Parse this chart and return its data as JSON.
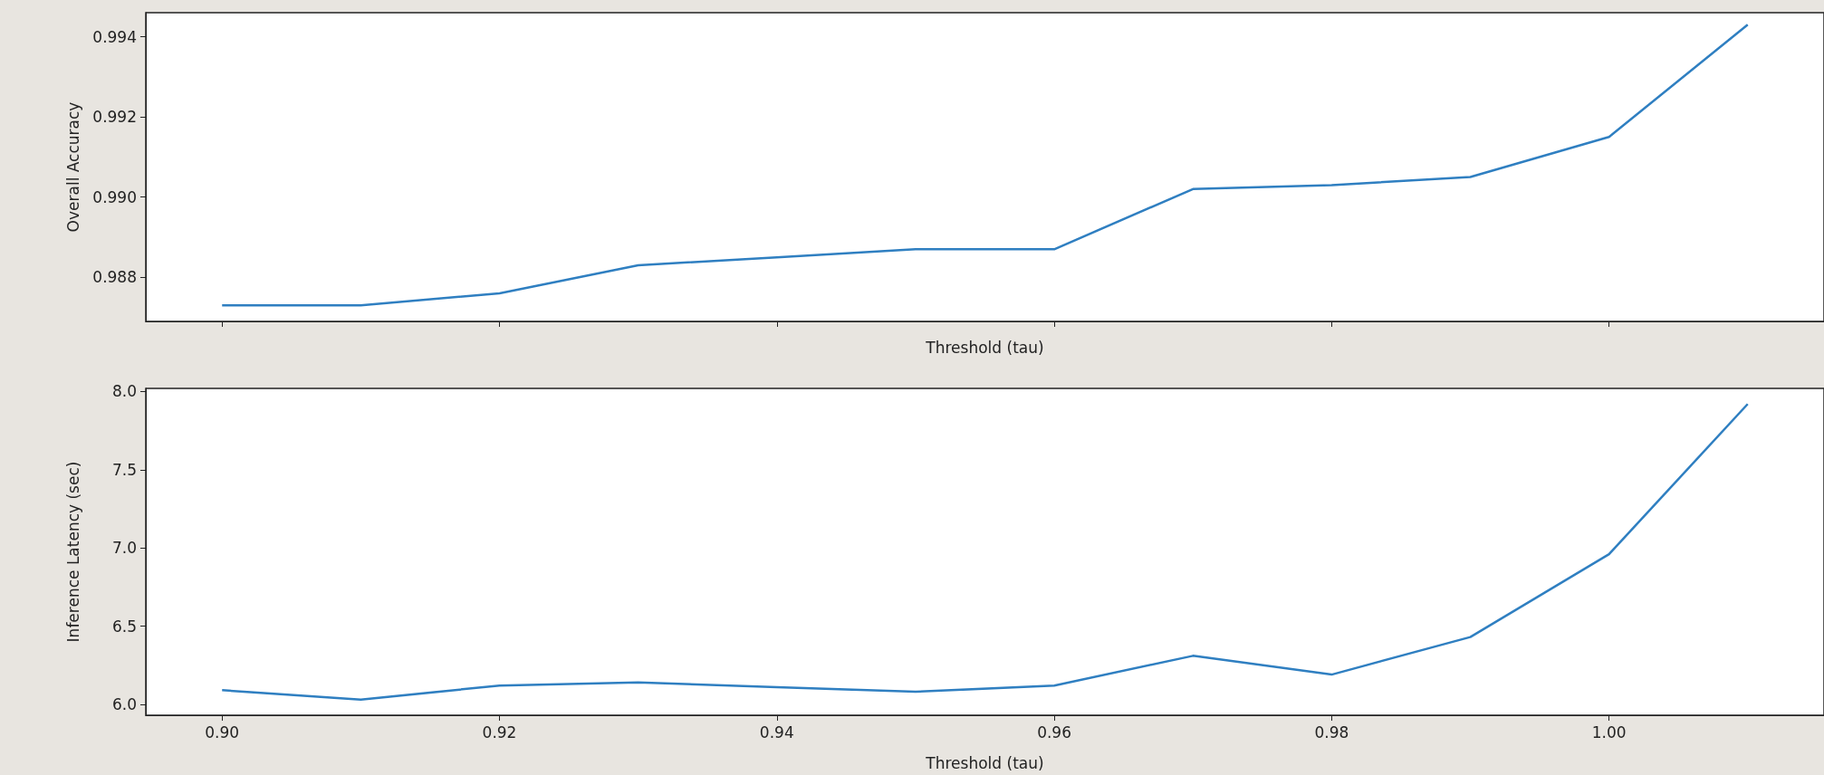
{
  "chart_data": [
    {
      "type": "line",
      "xlabel": "Threshold (tau)",
      "ylabel": "Overall Accuracy",
      "x": [
        0.9,
        0.91,
        0.92,
        0.93,
        0.94,
        0.95,
        0.96,
        0.97,
        0.98,
        0.99,
        1.0,
        1.01
      ],
      "series": [
        {
          "color": "#2f7fc1",
          "values": [
            0.9873,
            0.9873,
            0.9876,
            0.9883,
            0.9885,
            0.9887,
            0.9887,
            0.9902,
            0.9903,
            0.9905,
            0.9915,
            0.9943
          ]
        }
      ],
      "xlim": [
        0.8945,
        1.0155
      ],
      "xticks": [
        {
          "value": 0.9,
          "label": null
        },
        {
          "value": 0.92,
          "label": null
        },
        {
          "value": 0.94,
          "label": null
        },
        {
          "value": 0.96,
          "label": null
        },
        {
          "value": 0.98,
          "label": null
        },
        {
          "value": 1.0,
          "label": null
        }
      ],
      "ylim": [
        0.9869,
        0.9946
      ],
      "yticks": [
        0.988,
        {
          "value": 0.99,
          "label": "0.990"
        },
        0.992,
        0.994
      ],
      "tick_labels": "y",
      "marker": "none",
      "line_style": "solid"
    },
    {
      "type": "line",
      "xlabel": "Threshold (tau)",
      "ylabel": "Inference Latency (sec)",
      "x": [
        0.9,
        0.91,
        0.92,
        0.93,
        0.94,
        0.95,
        0.96,
        0.97,
        0.98,
        0.99,
        1.0,
        1.01
      ],
      "series": [
        {
          "color": "#2f7fc1",
          "values": [
            6.09,
            6.03,
            6.12,
            6.14,
            6.11,
            6.08,
            6.12,
            6.31,
            6.19,
            6.43,
            6.96,
            7.92
          ]
        }
      ],
      "xlim": [
        0.8945,
        1.0155
      ],
      "xticks": [
        {
          "value": 0.9,
          "label": "0.90"
        },
        0.92,
        0.94,
        0.96,
        0.98,
        {
          "value": 1.0,
          "label": "1.00"
        }
      ],
      "ylim": [
        5.93,
        8.02
      ],
      "yticks": [
        {
          "value": 6,
          "label": "6.0"
        },
        6.5,
        {
          "value": 7,
          "label": "7.0"
        },
        7.5,
        {
          "value": 8,
          "label": "8.0"
        }
      ],
      "marker": "none",
      "line_style": "solid"
    }
  ]
}
